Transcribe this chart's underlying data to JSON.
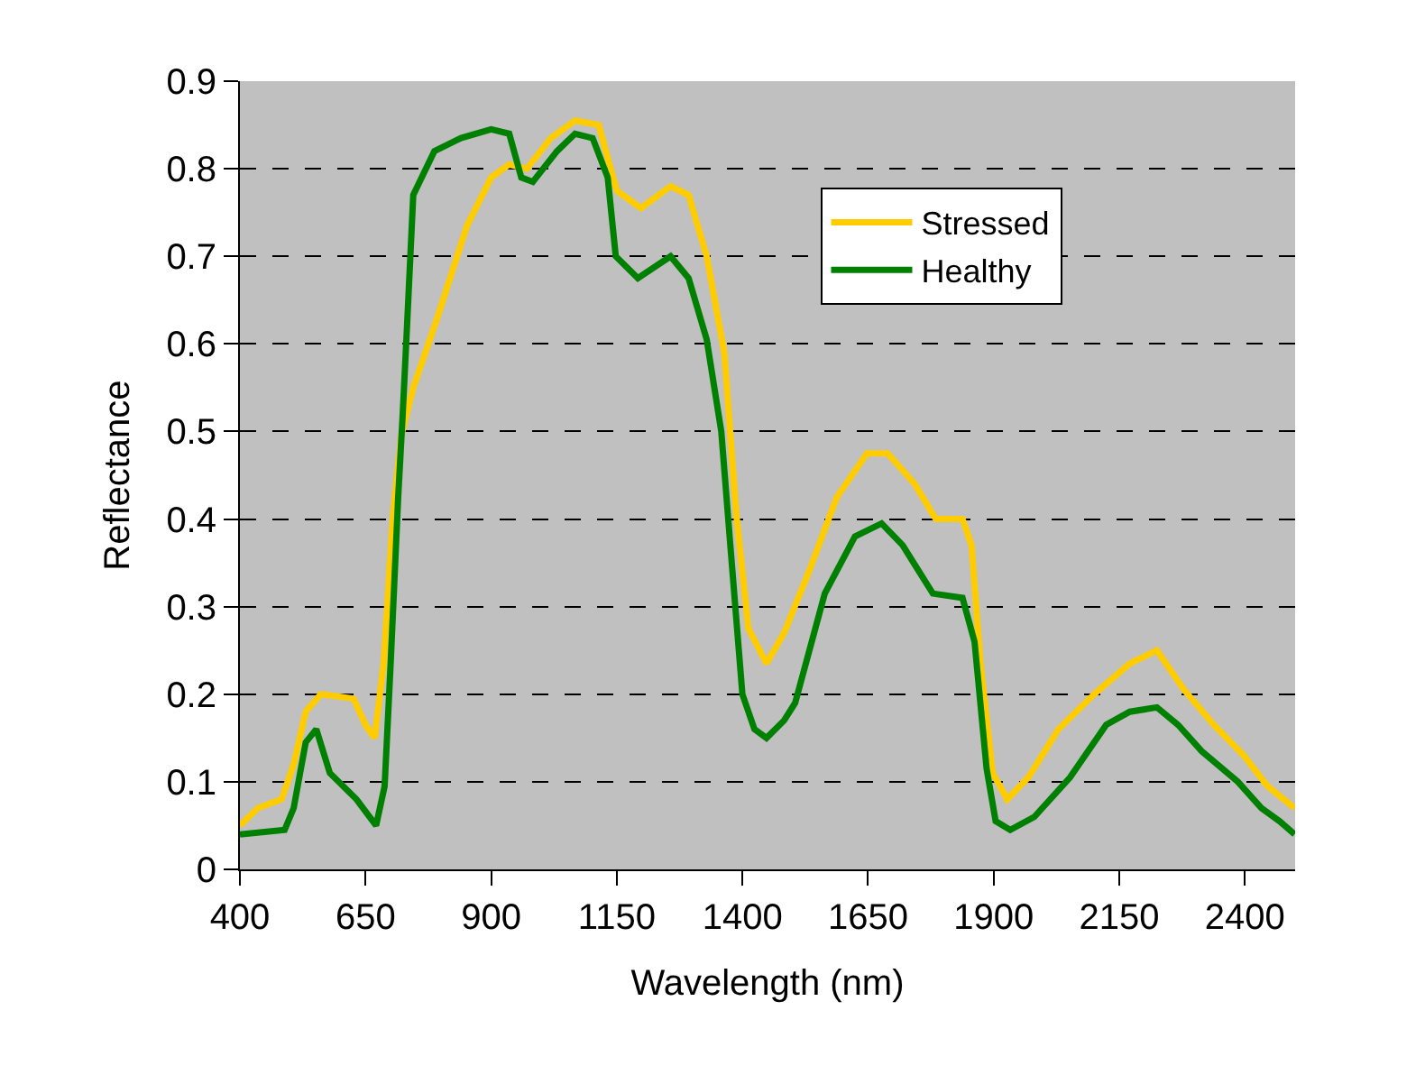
{
  "chart_data": {
    "type": "line",
    "xlabel": "Wavelength (nm)",
    "ylabel": "Reflectance",
    "xlim": [
      400,
      2500
    ],
    "xticks": [
      400,
      650,
      900,
      1150,
      1400,
      1650,
      1900,
      2150,
      2400
    ],
    "ylim": [
      0,
      0.9
    ],
    "yticks": [
      0,
      0.1,
      0.2,
      0.3,
      0.4,
      0.5,
      0.6,
      0.7,
      0.8,
      0.9
    ],
    "grid": "y",
    "legend": "top right",
    "marker": "none",
    "line_style": "solid",
    "series": [
      {
        "name": "Stressed",
        "color": "#ffcc00",
        "x": [
          400,
          436,
          483,
          507,
          531,
          561,
          626,
          650,
          668,
          686,
          704,
          721,
          745,
          793,
          852,
          900,
          936,
          971,
          1019,
          1067,
          1114,
          1150,
          1198,
          1257,
          1293,
          1329,
          1364,
          1388,
          1412,
          1448,
          1483,
          1529,
          1588,
          1648,
          1689,
          1743,
          1785,
          1838,
          1856,
          1874,
          1898,
          1927,
          1969,
          2029,
          2100,
          2171,
          2225,
          2279,
          2338,
          2398,
          2445,
          2499
        ],
        "values": [
          0.05,
          0.07,
          0.08,
          0.12,
          0.18,
          0.2,
          0.195,
          0.165,
          0.15,
          0.235,
          0.4,
          0.495,
          0.55,
          0.63,
          0.735,
          0.79,
          0.805,
          0.8,
          0.835,
          0.855,
          0.85,
          0.775,
          0.755,
          0.78,
          0.77,
          0.7,
          0.59,
          0.405,
          0.275,
          0.235,
          0.27,
          0.335,
          0.425,
          0.475,
          0.475,
          0.44,
          0.4,
          0.4,
          0.37,
          0.235,
          0.11,
          0.08,
          0.105,
          0.16,
          0.2,
          0.235,
          0.25,
          0.205,
          0.165,
          0.13,
          0.095,
          0.07
        ]
      },
      {
        "name": "Healthy",
        "color": "#008000",
        "x": [
          400,
          489,
          507,
          531,
          552,
          579,
          632,
          671,
          688,
          700,
          715,
          724,
          733,
          745,
          787,
          840,
          900,
          936,
          960,
          983,
          1031,
          1067,
          1102,
          1132,
          1148,
          1192,
          1257,
          1293,
          1329,
          1358,
          1376,
          1400,
          1424,
          1448,
          1483,
          1505,
          1564,
          1624,
          1677,
          1719,
          1779,
          1838,
          1862,
          1886,
          1904,
          1933,
          1981,
          2052,
          2124,
          2171,
          2225,
          2267,
          2314,
          2386,
          2433,
          2469,
          2499
        ],
        "values": [
          0.04,
          0.045,
          0.07,
          0.145,
          0.16,
          0.11,
          0.08,
          0.05,
          0.095,
          0.235,
          0.425,
          0.52,
          0.625,
          0.77,
          0.82,
          0.835,
          0.845,
          0.84,
          0.79,
          0.785,
          0.82,
          0.84,
          0.835,
          0.79,
          0.7,
          0.675,
          0.7,
          0.675,
          0.605,
          0.5,
          0.37,
          0.2,
          0.16,
          0.15,
          0.17,
          0.19,
          0.315,
          0.38,
          0.395,
          0.37,
          0.315,
          0.31,
          0.26,
          0.115,
          0.055,
          0.045,
          0.06,
          0.105,
          0.165,
          0.18,
          0.185,
          0.165,
          0.135,
          0.1,
          0.07,
          0.055,
          0.04
        ]
      }
    ]
  }
}
